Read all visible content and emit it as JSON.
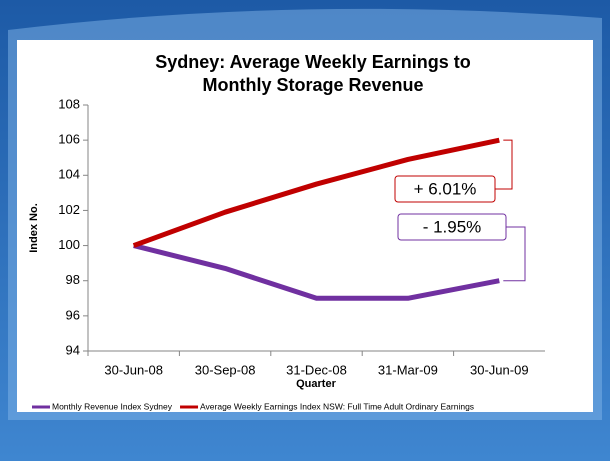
{
  "chart_data": {
    "type": "line",
    "title": [
      "Sydney: Average Weekly Earnings to",
      "Monthly Storage Revenue"
    ],
    "xlabel": "Quarter",
    "ylabel": "Index No.",
    "categories": [
      "30-Jun-08",
      "30-Sep-08",
      "31-Dec-08",
      "31-Mar-09",
      "30-Jun-09"
    ],
    "series": [
      {
        "name": "Monthly Revenue Index Sydney",
        "color": "#7030a0",
        "values": [
          100,
          98.7,
          97.0,
          97.0,
          98.0
        ]
      },
      {
        "name": "Average Weekly Earnings Index NSW: Full Time Adult Ordinary Earnings",
        "color": "#c00000",
        "values": [
          100,
          101.9,
          103.5,
          104.9,
          106.0
        ]
      }
    ],
    "annotations": [
      {
        "text": "+ 6.01%",
        "color": "#c00000"
      },
      {
        "text": "- 1.95%",
        "color": "#7030a0"
      }
    ],
    "ylim": [
      94,
      108
    ],
    "yticks": [
      94,
      96,
      98,
      100,
      102,
      104,
      106,
      108
    ],
    "legend": "bottom"
  }
}
